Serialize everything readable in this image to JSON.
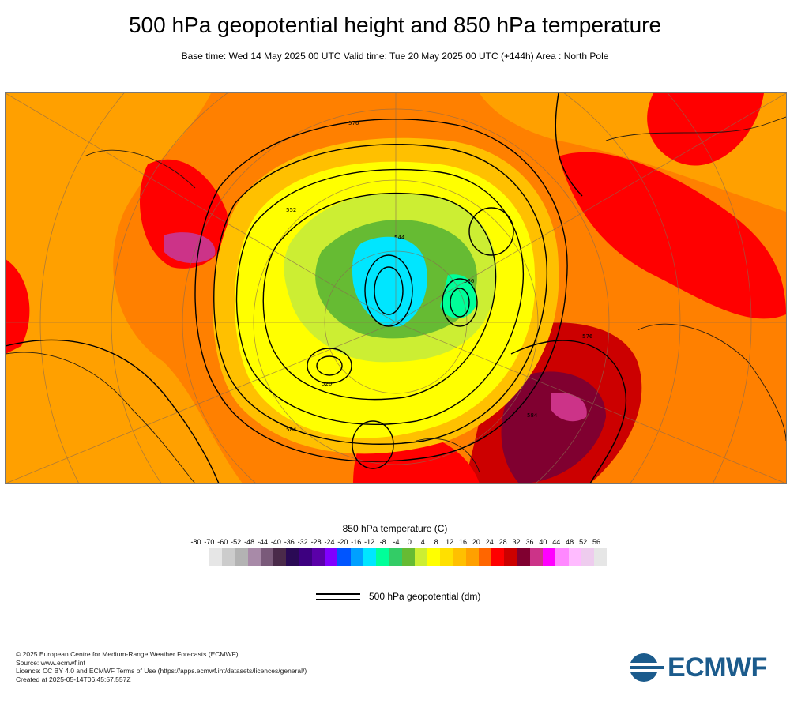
{
  "header": {
    "title": "500 hPa geopotential height and 850 hPa temperature",
    "subtitle": "Base time: Wed 14 May 2025 00 UTC Valid time: Tue 20 May 2025 00 UTC (+144h) Area : North Pole"
  },
  "map": {
    "contour_labels": [
      "528",
      "536",
      "544",
      "552",
      "560",
      "568",
      "576",
      "584",
      "520",
      "512"
    ],
    "icon": "polar-stereographic-map"
  },
  "legend": {
    "title": "850 hPa temperature (C)",
    "ticks": [
      "-80",
      "-70",
      "-60",
      "-52",
      "-48",
      "-44",
      "-40",
      "-36",
      "-32",
      "-28",
      "-24",
      "-20",
      "-16",
      "-12",
      "-8",
      "-4",
      "0",
      "4",
      "8",
      "12",
      "16",
      "20",
      "24",
      "28",
      "32",
      "36",
      "40",
      "44",
      "48",
      "52",
      "56"
    ],
    "colors": [
      "#e6e6e6",
      "#cccccc",
      "#b3b3b3",
      "#a88aa8",
      "#7a5a7a",
      "#4a2a4a",
      "#2a0a55",
      "#3d0080",
      "#5a00a8",
      "#8000ff",
      "#0055ff",
      "#00a0ff",
      "#00e6ff",
      "#00ff99",
      "#33cc66",
      "#66bb33",
      "#ccee33",
      "#ffff00",
      "#ffe000",
      "#ffc000",
      "#ffa000",
      "#ff6600",
      "#ff0000",
      "#cc0000",
      "#800030",
      "#cc3388",
      "#ff00ff",
      "#ff88ff",
      "#ffbbff",
      "#eeccee",
      "#e6e6e6"
    ],
    "geopotential_label": "500 hPa geopotential (dm)"
  },
  "footer": {
    "line1": "© 2025 European Centre for Medium-Range Weather Forecasts (ECMWF)",
    "line2": "Source: www.ecmwf.int",
    "line3": "Licence: CC BY 4.0 and ECMWF Terms of Use (https://apps.ecmwf.int/datasets/licences/general/)",
    "line4": "Created at 2025-05-14T06:45:57.557Z"
  },
  "logo": {
    "text": "ECMWF",
    "icon": "ecmwf-logo-icon",
    "color": "#1b5b8c"
  }
}
